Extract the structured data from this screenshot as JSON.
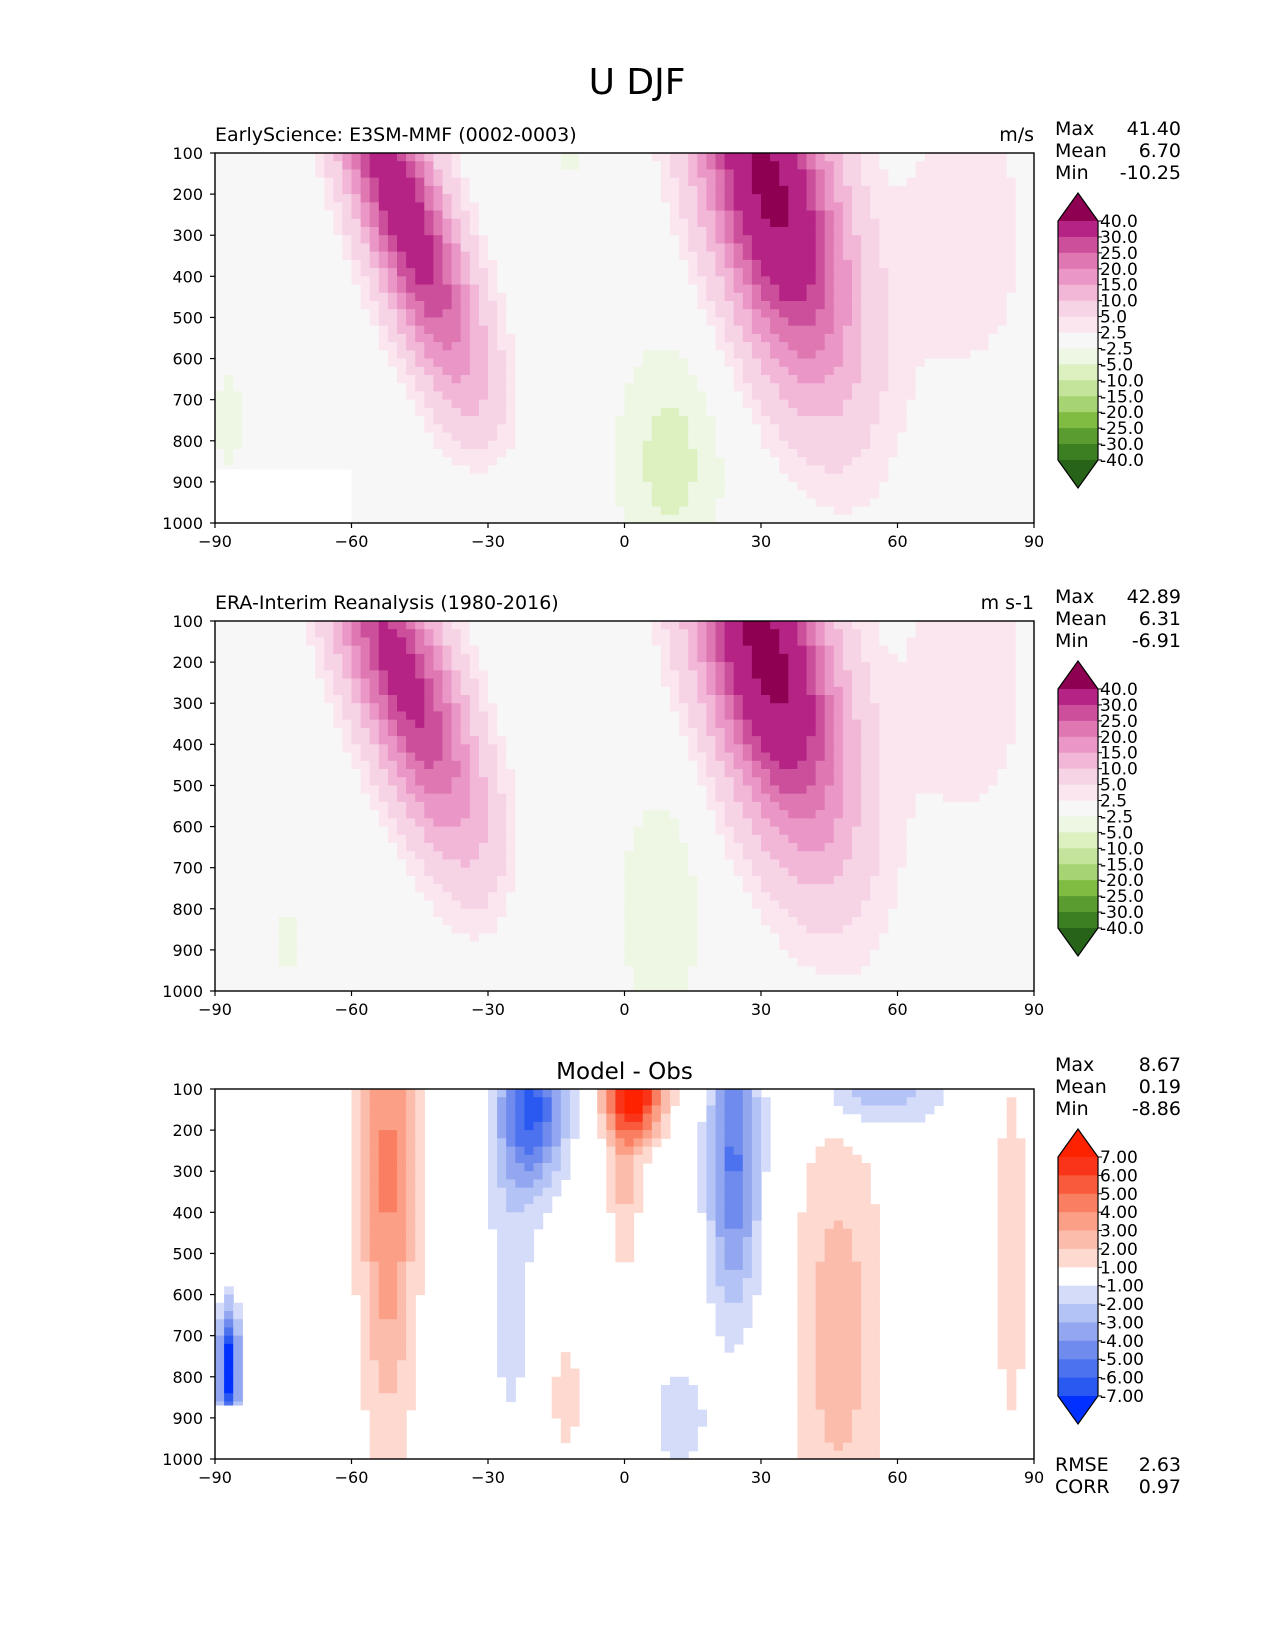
{
  "figure_title": "U DJF",
  "colors": {
    "axis": "#000000",
    "panel_bg": "#f6f6f4",
    "white": "#ffffff",
    "wind_scale": [
      "#276419",
      "#3b7f22",
      "#5a9c2f",
      "#7fbc41",
      "#a6d472",
      "#c3e49a",
      "#dcf0c0",
      "#eef7e4",
      "#f7f7f7",
      "#fbe6f0",
      "#f7d3e6",
      "#f2b6d7",
      "#ea97c7",
      "#de77b2",
      "#cb4f9b",
      "#b52384",
      "#8e0152"
    ],
    "diff_scale": [
      "#0031ff",
      "#2a59f2",
      "#4d72ef",
      "#6f8bee",
      "#92a7f0",
      "#b4c3f5",
      "#d5dcfa",
      "#ffffff",
      "#fdd9d0",
      "#fcbcab",
      "#fb9f86",
      "#fa7f62",
      "#f95a3c",
      "#f93418",
      "#ff2200"
    ]
  },
  "chart_data": [
    {
      "type": "heatmap",
      "title": "EarlyScience: E3SM-MMF (0002-0003)",
      "units": "m/s",
      "x_ticks": [
        "−90",
        "−60",
        "−30",
        "0",
        "30",
        "60",
        "90"
      ],
      "y_ticks": [
        "100",
        "200",
        "300",
        "400",
        "500",
        "600",
        "700",
        "800",
        "900",
        "1000"
      ],
      "xlim": [
        -90,
        90
      ],
      "ylim": [
        1000,
        100
      ],
      "stats": [
        {
          "label": "Max",
          "value": "41.40"
        },
        {
          "label": "Mean",
          "value": "6.70"
        },
        {
          "label": "Min",
          "value": "-10.25"
        }
      ],
      "colorbar": {
        "ticks": [
          "40.0",
          "30.0",
          "25.0",
          "20.0",
          "15.0",
          "10.0",
          "5.0",
          "2.5",
          "-2.5",
          "-5.0",
          "-10.0",
          "-15.0",
          "-20.0",
          "-25.0",
          "-30.0",
          "-40.0"
        ],
        "extend": "both"
      },
      "features": [
        {
          "lat": -49,
          "p": 230,
          "sx": 7,
          "sy": 320,
          "amp": 36,
          "skew": 0.03
        },
        {
          "lat": 32,
          "p": 190,
          "sx": 10,
          "sy": 330,
          "amp": 42,
          "skew": 0.02
        },
        {
          "lat": 10,
          "p": 850,
          "sx": 9,
          "sy": 220,
          "amp": -6
        },
        {
          "lat": -25,
          "p": 950,
          "sx": 8,
          "sy": 130,
          "amp": -3.5
        },
        {
          "lat": -12,
          "p": 100,
          "sx": 5,
          "sy": 60,
          "amp": -3
        },
        {
          "lat": 75,
          "p": 300,
          "sx": 12,
          "sy": 300,
          "amp": 4
        },
        {
          "lat": -87,
          "p": 750,
          "sx": 2.5,
          "sy": 120,
          "amp": -4
        }
      ],
      "masked_region": {
        "lat": [
          -90,
          -60
        ],
        "p": [
          870,
          1000
        ]
      }
    },
    {
      "type": "heatmap",
      "title": "ERA-Interim Reanalysis (1980-2016)",
      "units": "m s-1",
      "x_ticks": [
        "−90",
        "−60",
        "−30",
        "0",
        "30",
        "60",
        "90"
      ],
      "y_ticks": [
        "100",
        "200",
        "300",
        "400",
        "500",
        "600",
        "700",
        "800",
        "900",
        "1000"
      ],
      "xlim": [
        -90,
        90
      ],
      "ylim": [
        1000,
        100
      ],
      "stats": [
        {
          "label": "Max",
          "value": "42.89"
        },
        {
          "label": "Mean",
          "value": "6.31"
        },
        {
          "label": "Min",
          "value": "-6.91"
        }
      ],
      "colorbar": {
        "ticks": [
          "40.0",
          "30.0",
          "25.0",
          "20.0",
          "15.0",
          "10.0",
          "5.0",
          "2.5",
          "-2.5",
          "-5.0",
          "-10.0",
          "-15.0",
          "-20.0",
          "-25.0",
          "-30.0",
          "-40.0"
        ],
        "extend": "both"
      },
      "features": [
        {
          "lat": -49,
          "p": 230,
          "sx": 8,
          "sy": 300,
          "amp": 33,
          "skew": 0.03
        },
        {
          "lat": 31,
          "p": 180,
          "sx": 10,
          "sy": 330,
          "amp": 43,
          "skew": 0.02
        },
        {
          "lat": 8,
          "p": 800,
          "sx": 7,
          "sy": 220,
          "amp": -5
        },
        {
          "lat": -20,
          "p": 900,
          "sx": 7,
          "sy": 150,
          "amp": -3
        },
        {
          "lat": -74,
          "p": 880,
          "sx": 2.5,
          "sy": 120,
          "amp": -3
        },
        {
          "lat": 75,
          "p": 250,
          "sx": 12,
          "sy": 300,
          "amp": 4
        }
      ]
    },
    {
      "type": "heatmap",
      "title": "Model - Obs",
      "units": "",
      "x_ticks": [
        "−90",
        "−60",
        "−30",
        "0",
        "30",
        "60",
        "90"
      ],
      "y_ticks": [
        "100",
        "200",
        "300",
        "400",
        "500",
        "600",
        "700",
        "800",
        "900",
        "1000"
      ],
      "xlim": [
        -90,
        90
      ],
      "ylim": [
        1000,
        100
      ],
      "stats": [
        {
          "label": "Max",
          "value": "8.67"
        },
        {
          "label": "Mean",
          "value": "0.19"
        },
        {
          "label": "Min",
          "value": "-8.86"
        }
      ],
      "extra_stats": [
        {
          "label": "RMSE",
          "value": "2.63"
        },
        {
          "label": "CORR",
          "value": "0.97"
        }
      ],
      "colorbar": {
        "ticks": [
          "7.00",
          "6.00",
          "5.00",
          "4.00",
          "3.00",
          "2.00",
          "1.00",
          "-1.00",
          "-2.00",
          "-3.00",
          "-4.00",
          "-5.00",
          "-6.00",
          "-7.00"
        ],
        "extend": "both"
      },
      "features": [
        {
          "lat": -52,
          "p": 300,
          "sx": 4.5,
          "sy": 450,
          "amp": 4.2
        },
        {
          "lat": -20,
          "p": 150,
          "sx": 5,
          "sy": 130,
          "amp": -6
        },
        {
          "lat": 2,
          "p": 110,
          "sx": 4.5,
          "sy": 80,
          "amp": 8
        },
        {
          "lat": 24,
          "p": 280,
          "sx": 4,
          "sy": 250,
          "amp": -5.2
        },
        {
          "lat": 47,
          "p": 700,
          "sx": 7,
          "sy": 400,
          "amp": 2.6
        },
        {
          "lat": 85,
          "p": 500,
          "sx": 3,
          "sy": 400,
          "amp": 1.6
        },
        {
          "lat": -25,
          "p": 500,
          "sx": 4,
          "sy": 400,
          "amp": -1.5
        },
        {
          "lat": 55,
          "p": 110,
          "sx": 10,
          "sy": 60,
          "amp": -3
        },
        {
          "lat": 0,
          "p": 350,
          "sx": 2.5,
          "sy": 150,
          "amp": 2.2
        },
        {
          "lat": -13,
          "p": 850,
          "sx": 2.5,
          "sy": 120,
          "amp": 1.6
        },
        {
          "lat": 12,
          "p": 900,
          "sx": 5,
          "sy": 100,
          "amp": -1.6
        },
        {
          "lat": -87,
          "p": 780,
          "sx": 1.6,
          "sy": 100,
          "amp": -8.5
        }
      ],
      "masked_region": {
        "lat": [
          -90,
          -60
        ],
        "p": [
          870,
          1000
        ]
      }
    }
  ]
}
